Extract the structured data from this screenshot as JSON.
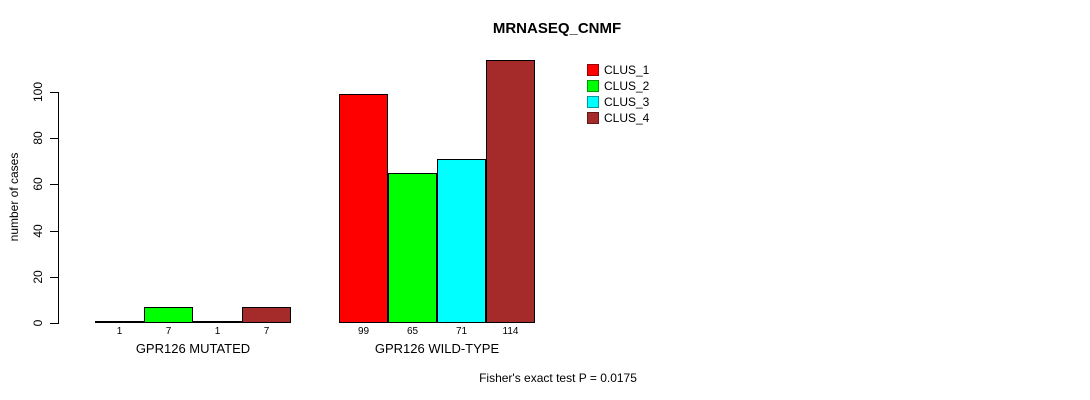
{
  "chart_data": {
    "type": "bar",
    "title": "MRNASEQ_CNMF",
    "ylabel": "number of cases",
    "xlabel": "",
    "ylim": [
      0,
      115
    ],
    "yticks": [
      0,
      20,
      40,
      60,
      80,
      100
    ],
    "grid": false,
    "legend_position": "top-right",
    "categories": [
      "GPR126 MUTATED",
      "GPR126 WILD-TYPE"
    ],
    "series": [
      {
        "name": "CLUS_1",
        "color": "#FF0000",
        "values": [
          1,
          99
        ]
      },
      {
        "name": "CLUS_2",
        "color": "#00FF00",
        "values": [
          7,
          65
        ]
      },
      {
        "name": "CLUS_3",
        "color": "#00FFFF",
        "values": [
          1,
          71
        ]
      },
      {
        "name": "CLUS_4",
        "color": "#A52A2A",
        "values": [
          7,
          114
        ]
      }
    ],
    "show_bar_values": true,
    "annotation": "Fisher's exact test P = 0.0175"
  }
}
